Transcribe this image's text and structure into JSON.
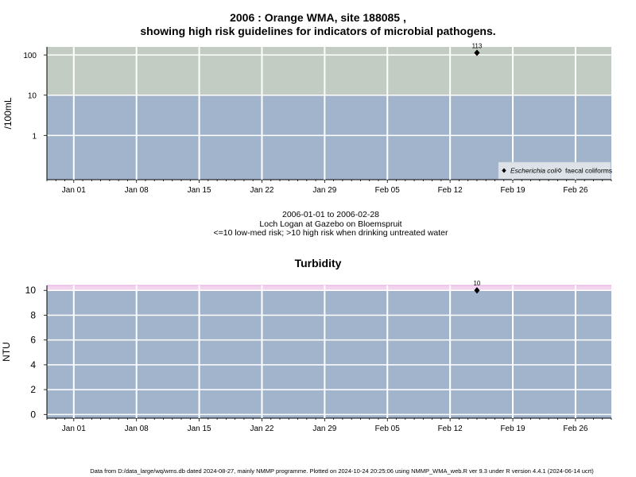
{
  "chart_data": [
    {
      "type": "scatter",
      "title": "2006 : Orange WMA, site 188085 ,",
      "subtitle": "showing high risk guidelines for indicators of microbial pathogens.",
      "ylabel": "/100mL",
      "y_scale": "log",
      "y_ticks": [
        "1",
        "10",
        "100"
      ],
      "x_ticks": [
        "Jan 01",
        "Jan 08",
        "Jan 15",
        "Jan 22",
        "Jan 29",
        "Feb 05",
        "Feb 12",
        "Feb 19",
        "Feb 26"
      ],
      "xlim": [
        "2005-12-29",
        "2006-03-02"
      ],
      "ylim_log10": [
        -1.1,
        2.2
      ],
      "guideline_threshold": 10,
      "zones": {
        "low_med_color": "#a2b4cc",
        "high_color": "#c2ccc2"
      },
      "series": [
        {
          "name": "Escherichia coli",
          "marker": "filled-diamond",
          "points": [
            {
              "x": "2006-02-15",
              "y": 113,
              "label": "113"
            }
          ]
        },
        {
          "name": "faecal coliforms",
          "marker": "open-diamond",
          "points": []
        }
      ],
      "legend_position": "bottom-right",
      "notes": [
        "2006-01-01 to 2006-02-28",
        "Loch Logan at Gazebo on Bloemspruit",
        "<=10 low-med risk; >10 high risk when drinking untreated water"
      ]
    },
    {
      "type": "scatter",
      "title": "Turbidity",
      "ylabel": "NTU",
      "y_ticks": [
        "0",
        "2",
        "4",
        "6",
        "8",
        "10"
      ],
      "ylim": [
        -0.3,
        10.4
      ],
      "x_ticks": [
        "Jan 01",
        "Jan 08",
        "Jan 15",
        "Jan 22",
        "Jan 29",
        "Feb 05",
        "Feb 12",
        "Feb 19",
        "Feb 26"
      ],
      "xlim": [
        "2005-12-29",
        "2006-03-02"
      ],
      "guideline_threshold": 10,
      "zones": {
        "low_color": "#a2b4cc",
        "high_color": "#f2d4ee"
      },
      "series": [
        {
          "name": "Turbidity",
          "marker": "filled-diamond",
          "points": [
            {
              "x": "2006-02-15",
              "y": 10,
              "label": "10"
            }
          ]
        }
      ]
    }
  ],
  "footer": "Data from D:/data_large/wq/wms.db dated 2024-08-27, mainly NMMP programme. Plotted on 2024-10-24 20:25:06 using NMMP_WMA_web.R ver 9.3 under R version 4.4.1 (2024-06-14 ucrt)"
}
